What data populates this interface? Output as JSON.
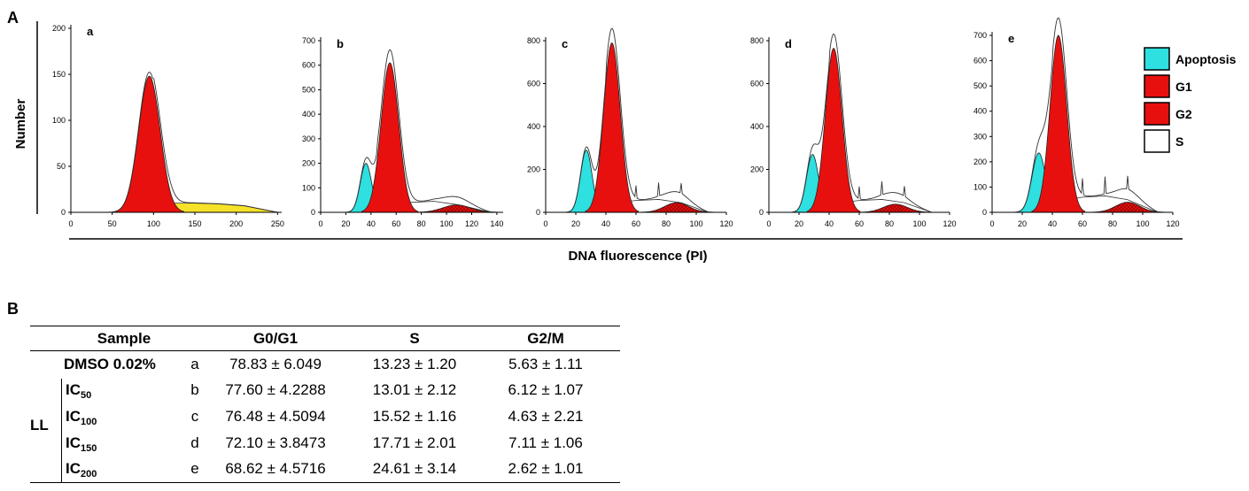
{
  "panel_labels": {
    "A": "A",
    "B": "B"
  },
  "colors": {
    "apoptosis": "#2ee0e0",
    "g1": "#e8100e",
    "g2": "#e8100e",
    "s": "#ffffff",
    "yellow": "#f6e22a"
  },
  "legend": {
    "items": [
      {
        "label": "Apoptosis",
        "color": "#2ee0e0"
      },
      {
        "label": "G1",
        "color": "#e8100e"
      },
      {
        "label": "G2",
        "color": "#e8100e"
      },
      {
        "label": "S",
        "color": "#ffffff"
      }
    ]
  },
  "chart_data": {
    "type": "area",
    "title": "",
    "xlabel": "DNA fluorescence (PI)",
    "ylabel": "Number",
    "panels": [
      {
        "label": "a",
        "xlim": [
          0,
          255
        ],
        "ylim": [
          0,
          200
        ],
        "xticks": [
          0,
          50,
          100,
          150,
          200,
          250
        ],
        "yticks": [
          0,
          50,
          100,
          150,
          200
        ],
        "series": [
          {
            "name": "G1",
            "center": 95,
            "sigma": 13,
            "peak": 148
          },
          {
            "name": "S",
            "x": [
              100,
              120,
              150,
              180,
              210,
              250
            ],
            "values": [
              5,
              10,
              10,
              9,
              7,
              0
            ]
          }
        ]
      },
      {
        "label": "b",
        "xlim": [
          0,
          145
        ],
        "ylim": [
          0,
          700
        ],
        "xticks": [
          0,
          20,
          40,
          60,
          80,
          100,
          120,
          140
        ],
        "yticks": [
          0,
          100,
          200,
          300,
          400,
          500,
          600,
          700
        ],
        "series": [
          {
            "name": "Apoptosis",
            "center": 36,
            "sigma": 4.5,
            "peak": 200
          },
          {
            "name": "G1",
            "center": 55,
            "sigma": 7,
            "peak": 610
          },
          {
            "name": "G2",
            "center": 108,
            "sigma": 11,
            "peak": 30
          },
          {
            "name": "S",
            "x": [
              45,
              70,
              90,
              110,
              135
            ],
            "values": [
              30,
              40,
              45,
              30,
              0
            ]
          }
        ]
      },
      {
        "label": "c",
        "xlim": [
          0,
          120
        ],
        "ylim": [
          0,
          800
        ],
        "xticks": [
          0,
          20,
          40,
          60,
          80,
          100,
          120
        ],
        "yticks": [
          0,
          200,
          400,
          600,
          800
        ],
        "series": [
          {
            "name": "Apoptosis",
            "center": 27,
            "sigma": 3.8,
            "peak": 290
          },
          {
            "name": "G1",
            "center": 44,
            "sigma": 5.5,
            "peak": 790
          },
          {
            "name": "G2",
            "center": 87,
            "sigma": 8,
            "peak": 45
          },
          {
            "name": "S",
            "x": [
              40,
              60,
              75,
              90,
              108
            ],
            "values": [
              40,
              55,
              60,
              45,
              0
            ]
          }
        ]
      },
      {
        "label": "d",
        "xlim": [
          0,
          120
        ],
        "ylim": [
          0,
          800
        ],
        "xticks": [
          0,
          20,
          40,
          60,
          80,
          100,
          120
        ],
        "yticks": [
          0,
          200,
          400,
          600,
          800
        ],
        "series": [
          {
            "name": "Apoptosis",
            "center": 29,
            "sigma": 4,
            "peak": 270
          },
          {
            "name": "G1",
            "center": 43,
            "sigma": 5.5,
            "peak": 765
          },
          {
            "name": "G2",
            "center": 84,
            "sigma": 8,
            "peak": 38
          },
          {
            "name": "S",
            "x": [
              40,
              60,
              75,
              90,
              108
            ],
            "values": [
              40,
              55,
              60,
              45,
              0
            ]
          }
        ]
      },
      {
        "label": "e",
        "xlim": [
          0,
          120
        ],
        "ylim": [
          0,
          700
        ],
        "xticks": [
          0,
          20,
          40,
          60,
          80,
          100,
          120
        ],
        "yticks": [
          0,
          100,
          200,
          300,
          400,
          500,
          600,
          700
        ],
        "series": [
          {
            "name": "Apoptosis",
            "center": 31,
            "sigma": 4.5,
            "peak": 235
          },
          {
            "name": "G1",
            "center": 44,
            "sigma": 5.5,
            "peak": 700
          },
          {
            "name": "G2",
            "center": 90,
            "sigma": 8,
            "peak": 40
          },
          {
            "name": "S",
            "x": [
              40,
              60,
              75,
              90,
              110
            ],
            "values": [
              40,
              60,
              65,
              50,
              0
            ]
          }
        ]
      }
    ]
  },
  "table": {
    "headers": {
      "sample": "Sample",
      "g0g1": "G0/G1",
      "s": "S",
      "g2m": "G2/M"
    },
    "group_label": "LL",
    "rows": [
      {
        "sample": "DMSO 0.02%",
        "ic_base": "",
        "ic_sub": "",
        "code": "a",
        "g0g1": "78.83 ± 6.049",
        "s": "13.23 ±  1.20",
        "g2m": "5.63 ± 1.11"
      },
      {
        "sample": "",
        "ic_base": "IC",
        "ic_sub": "50",
        "code": "b",
        "g0g1": "77.60 ± 4.2288",
        "s": "13.01 ± 2.12",
        "g2m": "6.12 ± 1.07"
      },
      {
        "sample": "",
        "ic_base": "IC",
        "ic_sub": "100",
        "code": "c",
        "g0g1": "76.48 ± 4.5094",
        "s": "15.52 ± 1.16",
        "g2m": "4.63 ± 2.21"
      },
      {
        "sample": "",
        "ic_base": "IC",
        "ic_sub": "150",
        "code": "d",
        "g0g1": "72.10 ± 3.8473",
        "s": "17.71 ± 2.01",
        "g2m": "7.11 ± 1.06"
      },
      {
        "sample": "",
        "ic_base": "IC",
        "ic_sub": "200",
        "code": "e",
        "g0g1": "68.62 ± 4.5716",
        "s": "24.61 ± 3.14",
        "g2m": "2.62 ± 1.01"
      }
    ]
  }
}
